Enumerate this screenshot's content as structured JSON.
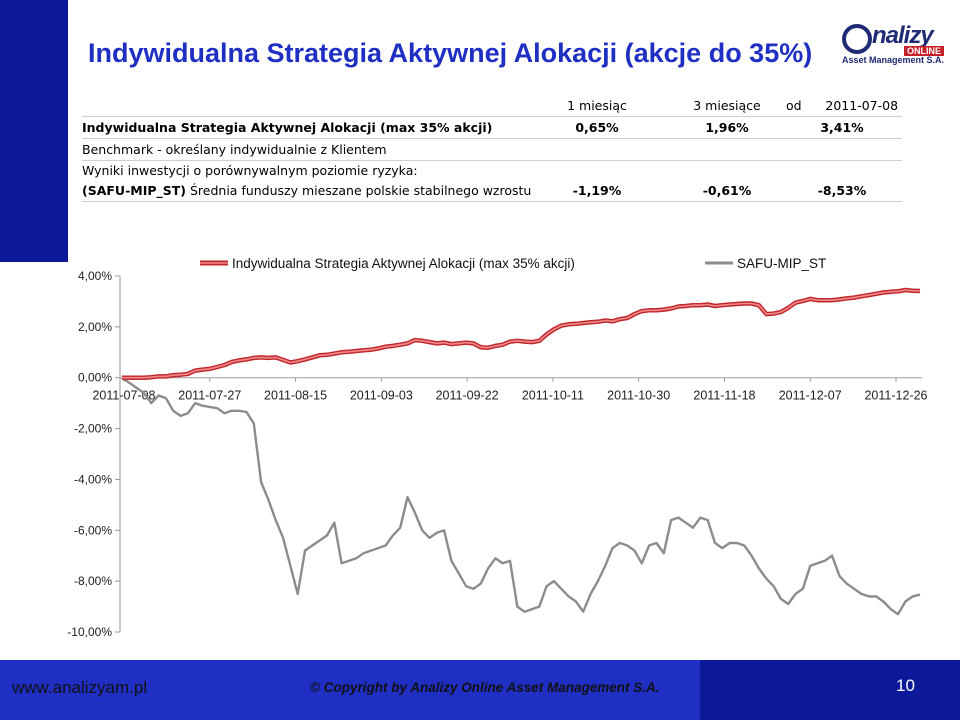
{
  "header": {
    "title": "Indywidualna Strategia Aktywnej Alokacji (akcje do 35%)",
    "logo": {
      "brand": "nalizy",
      "online": "ONLINE",
      "sub": "Asset Management S.A."
    }
  },
  "performance": {
    "columns": [
      "1 miesiąc",
      "3 miesiące",
      "od",
      "2011-07-08"
    ],
    "rows": [
      {
        "label": "Indywidualna Strategia Aktywnej Alokacji (max 35% akcji)",
        "values": [
          "0,65%",
          "1,96%",
          "3,41%"
        ]
      },
      {
        "label": "Benchmark - określany indywidualnie z Klientem"
      },
      {
        "label": "Wyniki inwestycji o porównywalnym poziomie ryzyka:"
      },
      {
        "label": "(SAFU-MIP_ST)",
        "label_rest": " Średnia funduszy mieszane polskie stabilnego wzrostu",
        "values": [
          "-1,19%",
          "-0,61%",
          "-8,53%"
        ]
      }
    ]
  },
  "chart_data": {
    "type": "line",
    "x_labels": [
      "2011-07-08",
      "2011-07-27",
      "2011-08-15",
      "2011-09-03",
      "2011-09-22",
      "2011-10-11",
      "2011-10-30",
      "2011-11-18",
      "2011-12-07",
      "2011-12-26"
    ],
    "y_ticks": [
      "4,00%",
      "2,00%",
      "0,00%",
      "-2,00%",
      "-4,00%",
      "-6,00%",
      "-8,00%",
      "-10,00%"
    ],
    "ylim": [
      -10,
      4
    ],
    "legend_position": "top",
    "series": [
      {
        "name": "Indywidualna Strategia Aktywnej Alokacji (max 35% akcji)",
        "color": "#c0282e",
        "highlight": "#f08a8a",
        "values": [
          0,
          0,
          0,
          0,
          0.02,
          0.05,
          0.05,
          0.1,
          0.12,
          0.15,
          0.28,
          0.32,
          0.35,
          0.42,
          0.5,
          0.62,
          0.68,
          0.72,
          0.78,
          0.8,
          0.78,
          0.8,
          0.7,
          0.6,
          0.65,
          0.72,
          0.8,
          0.88,
          0.9,
          0.95,
          1.0,
          1.02,
          1.05,
          1.08,
          1.1,
          1.15,
          1.22,
          1.25,
          1.3,
          1.35,
          1.48,
          1.45,
          1.4,
          1.35,
          1.38,
          1.32,
          1.35,
          1.38,
          1.35,
          1.2,
          1.18,
          1.25,
          1.3,
          1.42,
          1.45,
          1.42,
          1.4,
          1.45,
          1.7,
          1.9,
          2.05,
          2.1,
          2.12,
          2.15,
          2.18,
          2.2,
          2.25,
          2.22,
          2.3,
          2.35,
          2.5,
          2.62,
          2.65,
          2.65,
          2.68,
          2.72,
          2.8,
          2.82,
          2.85,
          2.85,
          2.88,
          2.82,
          2.85,
          2.88,
          2.9,
          2.92,
          2.92,
          2.85,
          2.5,
          2.52,
          2.58,
          2.75,
          2.95,
          3.02,
          3.1,
          3.05,
          3.05,
          3.05,
          3.08,
          3.12,
          3.15,
          3.2,
          3.25,
          3.3,
          3.35,
          3.38,
          3.4,
          3.45,
          3.42,
          3.41
        ]
      },
      {
        "name": "SAFU-MIP_ST",
        "color": "#8c8c8c",
        "values": [
          0,
          -0.2,
          -0.4,
          -0.6,
          -1.0,
          -0.7,
          -0.8,
          -1.3,
          -1.5,
          -1.4,
          -1.0,
          -1.1,
          -1.15,
          -1.2,
          -1.4,
          -1.3,
          -1.3,
          -1.35,
          -1.8,
          -4.1,
          -4.8,
          -5.6,
          -6.3,
          -7.4,
          -8.5,
          -6.8,
          -6.6,
          -6.4,
          -6.2,
          -5.7,
          -7.3,
          -7.2,
          -7.1,
          -6.9,
          -6.8,
          -6.7,
          -6.6,
          -6.2,
          -5.9,
          -4.7,
          -5.3,
          -6.0,
          -6.3,
          -6.1,
          -6.0,
          -7.2,
          -7.7,
          -8.2,
          -8.3,
          -8.1,
          -7.5,
          -7.1,
          -7.3,
          -7.2,
          -9.0,
          -9.2,
          -9.1,
          -9.0,
          -8.2,
          -8.0,
          -8.3,
          -8.6,
          -8.8,
          -9.2,
          -8.5,
          -8.0,
          -7.4,
          -6.7,
          -6.5,
          -6.6,
          -6.8,
          -7.3,
          -6.6,
          -6.5,
          -6.9,
          -5.6,
          -5.5,
          -5.7,
          -5.9,
          -5.5,
          -5.6,
          -6.5,
          -6.7,
          -6.5,
          -6.5,
          -6.6,
          -7.0,
          -7.5,
          -7.9,
          -8.2,
          -8.7,
          -8.9,
          -8.5,
          -8.3,
          -7.4,
          -7.3,
          -7.2,
          -7.0,
          -7.8,
          -8.1,
          -8.3,
          -8.5,
          -8.6,
          -8.6,
          -8.8,
          -9.1,
          -9.3,
          -8.8,
          -8.6,
          -8.53
        ]
      }
    ]
  },
  "footer": {
    "website": "www.analizyam.pl",
    "copyright": "© Copyright by Analizy Online Asset Management S.A.",
    "page_number": "10"
  }
}
